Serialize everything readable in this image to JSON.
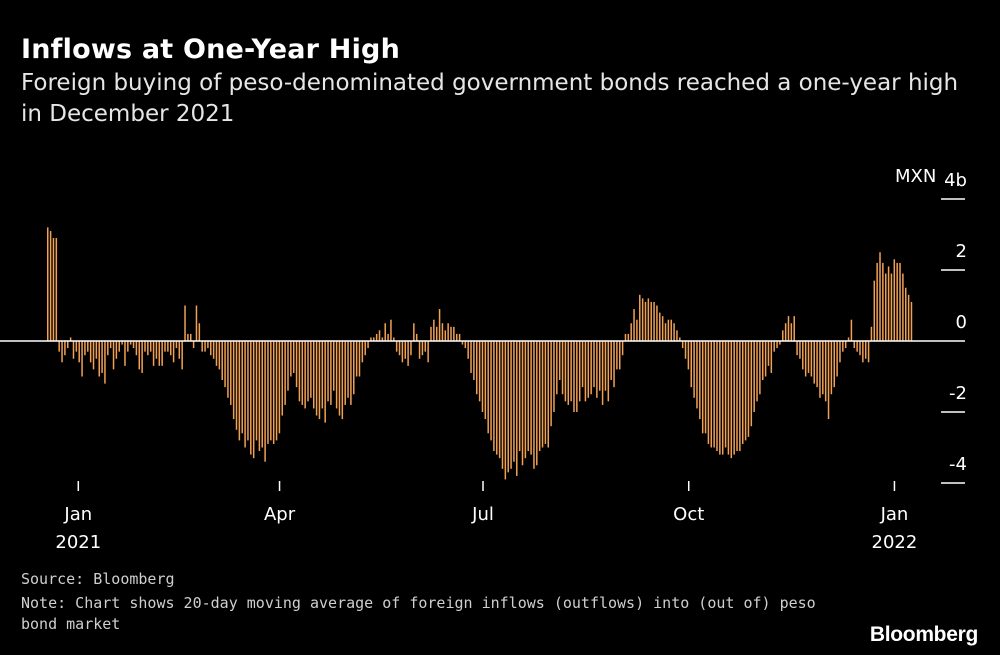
{
  "header": {
    "title": "Inflows at One-Year High",
    "subtitle": "Foreign buying of peso-denominated government bonds reached a one-year high in December 2021"
  },
  "footer": {
    "source": "Source: Bloomberg",
    "note": "Note: Chart shows 20-day moving average of foreign inflows (outflows) into (out of) peso bond market",
    "brand": "Bloomberg"
  },
  "colors": {
    "bar": "#f2a154",
    "background": "#000000",
    "axis": "#ffffff"
  },
  "chart_data": {
    "type": "bar",
    "title": "Inflows at One-Year High",
    "ylabel": "MXN",
    "unit_label": "MXN",
    "ylim": [
      -4,
      4
    ],
    "y_ticks": [
      {
        "value": 4,
        "label": "4b"
      },
      {
        "value": 2,
        "label": "2"
      },
      {
        "value": 0,
        "label": "0"
      },
      {
        "value": -2,
        "label": "-2"
      },
      {
        "value": -4,
        "label": "-4"
      }
    ],
    "x_start_date": "2020-12-18",
    "x_ticks": [
      {
        "date": "2021-01-01",
        "label": "Jan",
        "sublabel": "2021"
      },
      {
        "date": "2021-04-01",
        "label": "Apr",
        "sublabel": ""
      },
      {
        "date": "2021-07-01",
        "label": "Jul",
        "sublabel": ""
      },
      {
        "date": "2021-10-01",
        "label": "Oct",
        "sublabel": ""
      },
      {
        "date": "2022-01-01",
        "label": "Jan",
        "sublabel": "2022"
      }
    ],
    "series": [
      {
        "name": "20-day moving average of foreign inflows (MXN bn)",
        "values": [
          3.2,
          3.1,
          2.9,
          2.9,
          -0.3,
          -0.6,
          -0.4,
          -0.2,
          0.1,
          -0.5,
          -0.3,
          -0.6,
          -1.0,
          -0.4,
          -0.3,
          -0.6,
          -0.8,
          -0.5,
          -1.0,
          -0.9,
          -1.2,
          -0.4,
          -0.2,
          -0.8,
          -0.5,
          -0.3,
          -0.1,
          -0.7,
          -0.3,
          -0.1,
          -0.2,
          -0.4,
          -0.8,
          -0.9,
          -0.3,
          -0.4,
          -0.3,
          -0.7,
          -0.5,
          -0.7,
          -0.7,
          -0.3,
          -0.3,
          -0.4,
          -0.6,
          -0.2,
          -0.5,
          -0.8,
          1.0,
          0.2,
          0.2,
          -0.2,
          1.0,
          0.5,
          -0.3,
          -0.3,
          -0.2,
          -0.4,
          -0.5,
          -0.7,
          -0.8,
          -1.1,
          -1.3,
          -1.6,
          -1.8,
          -2.2,
          -2.5,
          -2.8,
          -2.6,
          -3.0,
          -2.8,
          -3.2,
          -3.3,
          -2.8,
          -3.1,
          -3.0,
          -3.4,
          -2.9,
          -2.8,
          -2.9,
          -2.8,
          -2.6,
          -2.1,
          -1.8,
          -1.4,
          -1.0,
          -0.9,
          -1.3,
          -1.7,
          -1.8,
          -1.9,
          -1.7,
          -1.6,
          -1.9,
          -2.1,
          -2.2,
          -1.9,
          -2.3,
          -1.7,
          -1.8,
          -1.4,
          -1.9,
          -2.1,
          -2.2,
          -1.8,
          -1.6,
          -1.8,
          -1.5,
          -1.0,
          -1.0,
          -0.6,
          -0.4,
          -0.2,
          0.1,
          0.1,
          0.2,
          0.3,
          0.1,
          0.5,
          0.2,
          0.6,
          0.1,
          -0.3,
          -0.4,
          -0.6,
          -0.5,
          -0.7,
          -0.4,
          0.5,
          0.2,
          -0.5,
          -0.4,
          -0.3,
          -0.6,
          0.4,
          0.6,
          0.4,
          0.9,
          0.5,
          0.3,
          0.5,
          0.4,
          0.4,
          0.2,
          0.2,
          -0.1,
          -0.2,
          -0.5,
          -0.9,
          -1.1,
          -1.5,
          -1.7,
          -2.0,
          -2.2,
          -2.6,
          -2.8,
          -3.1,
          -3.2,
          -3.3,
          -3.6,
          -3.9,
          -3.7,
          -3.6,
          -3.4,
          -3.8,
          -3.1,
          -3.5,
          -3.3,
          -3.1,
          -3.2,
          -3.6,
          -3.5,
          -3.1,
          -3.0,
          -2.9,
          -3.0,
          -2.4,
          -2.0,
          -1.5,
          -1.1,
          -1.5,
          -1.7,
          -1.8,
          -1.7,
          -2.0,
          -2.0,
          -1.7,
          -1.3,
          -1.7,
          -1.6,
          -1.5,
          -1.3,
          -1.6,
          -1.4,
          -1.8,
          -1.4,
          -1.7,
          -1.1,
          -1.3,
          -0.8,
          -0.8,
          -0.4,
          0.2,
          0.2,
          0.5,
          0.9,
          0.6,
          1.3,
          1.2,
          1.1,
          1.2,
          1.1,
          1.1,
          1.0,
          0.8,
          0.7,
          0.5,
          0.6,
          0.6,
          0.5,
          0.3,
          0.1,
          -0.2,
          -0.5,
          -0.8,
          -1.3,
          -1.6,
          -1.9,
          -2.2,
          -2.6,
          -2.6,
          -2.9,
          -3.0,
          -3.0,
          -3.1,
          -3.2,
          -3.2,
          -3.0,
          -3.2,
          -3.3,
          -3.2,
          -3.1,
          -3.1,
          -2.9,
          -2.8,
          -2.7,
          -2.4,
          -2.0,
          -1.7,
          -1.5,
          -1.1,
          -1.0,
          -0.7,
          -0.9,
          -0.3,
          -0.2,
          -0.1,
          0.3,
          0.5,
          0.7,
          0.5,
          0.7,
          -0.4,
          -0.5,
          -0.8,
          -1.0,
          -0.9,
          -1.0,
          -1.2,
          -1.3,
          -1.6,
          -1.5,
          -1.7,
          -2.2,
          -1.5,
          -1.3,
          -1.0,
          -0.6,
          -0.3,
          -0.2,
          0.1,
          0.6,
          -0.2,
          -0.3,
          -0.4,
          -0.6,
          -0.5,
          -0.6,
          0.4,
          1.7,
          2.2,
          2.5,
          2.2,
          1.9,
          2.1,
          1.9,
          2.3,
          2.2,
          2.2,
          1.9,
          1.5,
          1.3,
          1.1
        ]
      }
    ]
  }
}
